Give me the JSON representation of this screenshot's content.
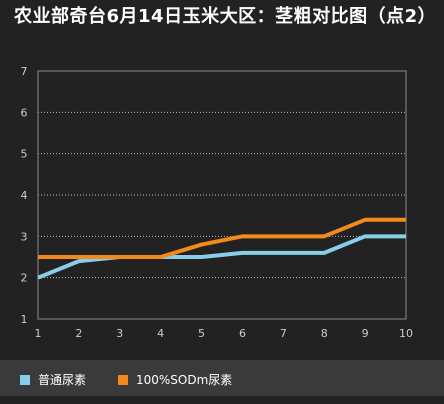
{
  "colors": {
    "background": "#222222",
    "legend_background": "#3a3a3a",
    "plot_border": "#8a8a8a",
    "gridline": "#bdbdbd",
    "tick_text": "#cccccc",
    "series_1": "#87ceeb",
    "series_2": "#f28a1c"
  },
  "chart_data": {
    "type": "line",
    "title": "农业部奇台6月14日玉米大区：茎粗对比图（点2）",
    "xlabel": "",
    "ylabel": "",
    "x": [
      1,
      2,
      3,
      4,
      5,
      6,
      7,
      8,
      9,
      10
    ],
    "x_tick_labels": [
      "1",
      "2",
      "3",
      "4",
      "5",
      "6",
      "7",
      "8",
      "9",
      "10"
    ],
    "y_tick_labels": [
      "1",
      "2",
      "3",
      "4",
      "5",
      "6",
      "7"
    ],
    "ylim": [
      1,
      7
    ],
    "grid": "horizontal dotted",
    "legend_position": "bottom",
    "series": [
      {
        "name": "普通尿素",
        "color": "#87ceeb",
        "values": [
          2.0,
          2.4,
          2.5,
          2.5,
          2.5,
          2.6,
          2.6,
          2.6,
          3.0,
          3.0
        ]
      },
      {
        "name": "100%SODm尿素",
        "color": "#f28a1c",
        "values": [
          2.5,
          2.5,
          2.5,
          2.5,
          2.8,
          3.0,
          3.0,
          3.0,
          3.4,
          3.4
        ]
      }
    ]
  }
}
